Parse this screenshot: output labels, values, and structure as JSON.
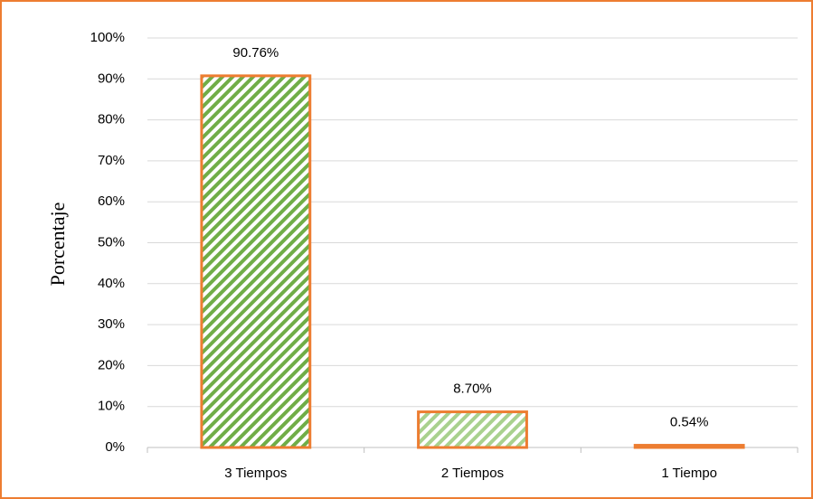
{
  "chart_data": {
    "type": "bar",
    "y_label": "Porcentaje",
    "categories": [
      "3 Tiempos",
      "2 Tiempos",
      "1 Tiempo"
    ],
    "values": [
      90.76,
      8.7,
      0.54
    ],
    "value_labels": [
      "90.76%",
      "8.70%",
      "0.54%"
    ],
    "colors": [
      "#70ad47",
      "#a9d18e",
      "#70ad47"
    ],
    "edge_color": "#ed7d31",
    "hatch": "diagonal",
    "ylim": [
      0,
      100
    ],
    "yticks": [
      {
        "value": 0,
        "label": "0%"
      },
      {
        "value": 10,
        "label": "10%"
      },
      {
        "value": 20,
        "label": "20%"
      },
      {
        "value": 30,
        "label": "30%"
      },
      {
        "value": 40,
        "label": "40%"
      },
      {
        "value": 50,
        "label": "50%"
      },
      {
        "value": 60,
        "label": "60%"
      },
      {
        "value": 70,
        "label": "70%"
      },
      {
        "value": 80,
        "label": "80%"
      },
      {
        "value": 90,
        "label": "90%"
      },
      {
        "value": 100,
        "label": "100%"
      }
    ],
    "grid": true
  }
}
